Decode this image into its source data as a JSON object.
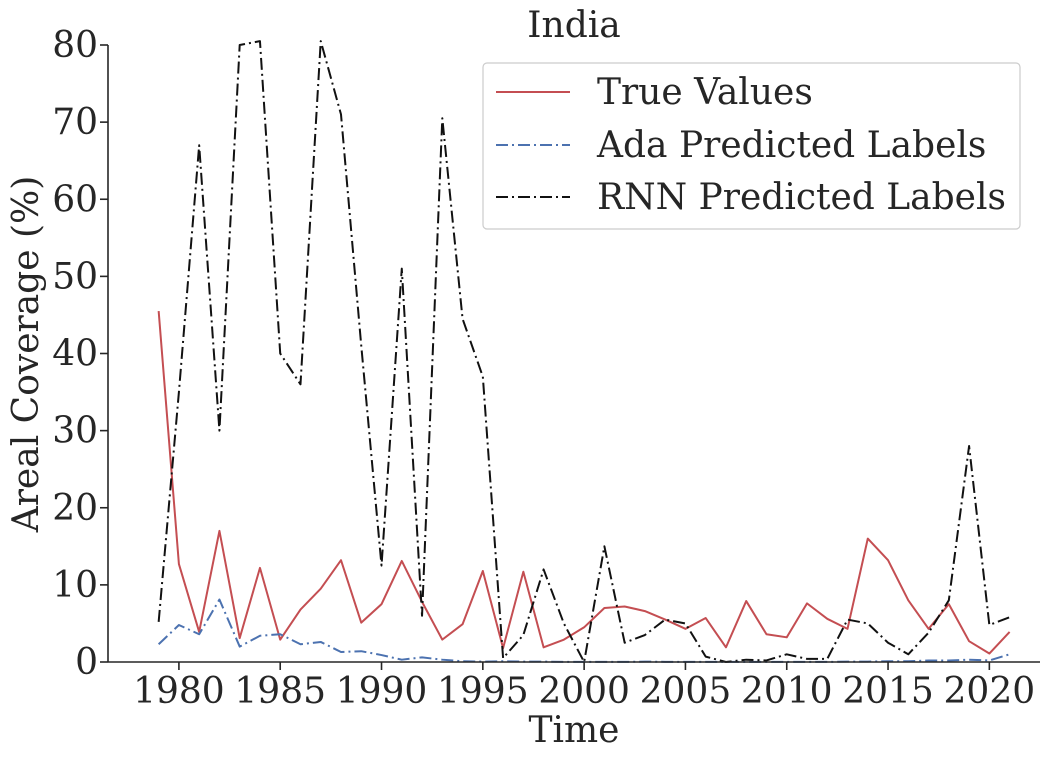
{
  "chart_data": {
    "type": "line",
    "title": "India",
    "xlabel": "Time",
    "ylabel": "Areal Coverage (%)",
    "xlim": [
      1976.5,
      2022.5
    ],
    "ylim": [
      0,
      80
    ],
    "xticks": [
      1980,
      1985,
      1990,
      1995,
      2000,
      2005,
      2010,
      2015,
      2020
    ],
    "yticks": [
      0,
      10,
      20,
      30,
      40,
      50,
      60,
      70,
      80
    ],
    "legend_position": "top-right",
    "grid": false,
    "x": [
      1979,
      1980,
      1981,
      1982,
      1983,
      1984,
      1985,
      1986,
      1987,
      1988,
      1989,
      1990,
      1991,
      1992,
      1993,
      1994,
      1995,
      1996,
      1997,
      1998,
      1999,
      2000,
      2001,
      2002,
      2003,
      2004,
      2005,
      2006,
      2007,
      2008,
      2009,
      2010,
      2011,
      2012,
      2013,
      2014,
      2015,
      2016,
      2017,
      2018,
      2019,
      2020,
      2021
    ],
    "series": [
      {
        "name": "True Values",
        "color": "#c44e52",
        "style": "solid",
        "values": [
          45.5,
          12.7,
          3.9,
          17.0,
          3.1,
          12.2,
          2.9,
          6.8,
          9.5,
          13.2,
          5.1,
          7.5,
          13.1,
          7.8,
          2.9,
          4.9,
          11.8,
          1.8,
          11.7,
          1.9,
          2.9,
          4.5,
          7.0,
          7.2,
          6.6,
          5.5,
          4.3,
          5.7,
          1.9,
          7.9,
          3.6,
          3.2,
          7.6,
          5.6,
          4.3,
          16.0,
          13.2,
          8.0,
          4.3,
          7.5,
          2.7,
          1.1,
          3.9
        ]
      },
      {
        "name": "Ada Predicted Labels",
        "color": "#4c72b0",
        "style": "dashdot",
        "values": [
          2.3,
          4.8,
          3.6,
          8.1,
          2.0,
          3.4,
          3.6,
          2.3,
          2.6,
          1.3,
          1.4,
          0.9,
          0.3,
          0.6,
          0.3,
          0.1,
          0.05,
          0.1,
          0.05,
          0.05,
          0.02,
          0.02,
          0.01,
          0.01,
          0.05,
          0.02,
          0.01,
          0.01,
          0.01,
          0.01,
          0.01,
          0.01,
          0.01,
          0.01,
          0.05,
          0.05,
          0.1,
          0.1,
          0.2,
          0.2,
          0.3,
          0.2,
          1.0
        ]
      },
      {
        "name": "RNN Predicted Labels",
        "color": "#111111",
        "style": "dashdot",
        "values": [
          5.2,
          35.0,
          67.0,
          30.0,
          80.0,
          80.5,
          40.0,
          36.0,
          80.5,
          71.0,
          41.0,
          12.5,
          51.0,
          6.0,
          70.5,
          44.5,
          37.0,
          0.5,
          3.5,
          12.0,
          5.0,
          0.0,
          15.0,
          2.5,
          3.5,
          5.5,
          5.0,
          0.7,
          0.0,
          0.3,
          0.2,
          1.0,
          0.4,
          0.4,
          5.5,
          5.0,
          2.5,
          1.0,
          3.8,
          8.0,
          28.0,
          4.8,
          5.8
        ]
      }
    ]
  }
}
